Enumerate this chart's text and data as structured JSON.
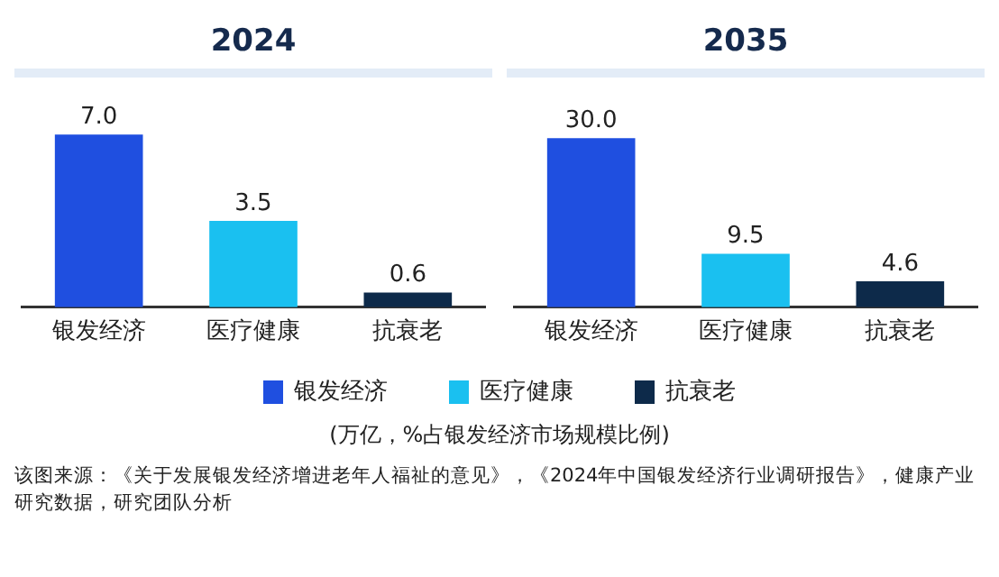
{
  "chart_data": [
    {
      "type": "bar",
      "title": "2024",
      "categories": [
        "银发经济",
        "医疗健康",
        "抗衰老"
      ],
      "stacked": true,
      "data_labels": true,
      "grid": false,
      "legend": "bottom",
      "series": [
        {
          "name": "银发经济",
          "color": "#1f4fe0",
          "values": [
            7.0,
            null,
            null
          ],
          "value_labels": [
            "7.0",
            null,
            null
          ]
        },
        {
          "name": "医疗健康",
          "color": "#1ac0f0",
          "values": [
            null,
            3.5,
            null
          ],
          "value_labels": [
            null,
            "3.5",
            null
          ]
        },
        {
          "name": "抗衰老",
          "color": "#0d2a4a",
          "values": [
            null,
            null,
            0.6
          ],
          "value_labels": [
            null,
            null,
            "0.6"
          ]
        }
      ],
      "annotations": [
        "(万亿，%占银发经济市场规模比例)",
        "该图来源：《关于发展银发经济增进老年人福祉的意见》，《2024年中国银发经济行业调研报告》，健康产业研究数据，研究团队分析"
      ]
    },
    {
      "type": "bar",
      "title": "2035",
      "categories": [
        "银发经济",
        "医疗健康",
        "抗衰老"
      ],
      "stacked": true,
      "data_labels": true,
      "grid": false,
      "series": [
        {
          "color": "#1f4fe0",
          "values": [
            30.0,
            null,
            null
          ],
          "value_labels": [
            "30.0",
            null,
            null
          ]
        },
        {
          "color": "#1ac0f0",
          "values": [
            null,
            9.5,
            null
          ],
          "value_labels": [
            null,
            "9.5",
            null
          ]
        },
        {
          "color": "#0d2a4a",
          "values": [
            null,
            null,
            4.6
          ],
          "value_labels": [
            null,
            null,
            "4.6"
          ]
        }
      ]
    }
  ]
}
